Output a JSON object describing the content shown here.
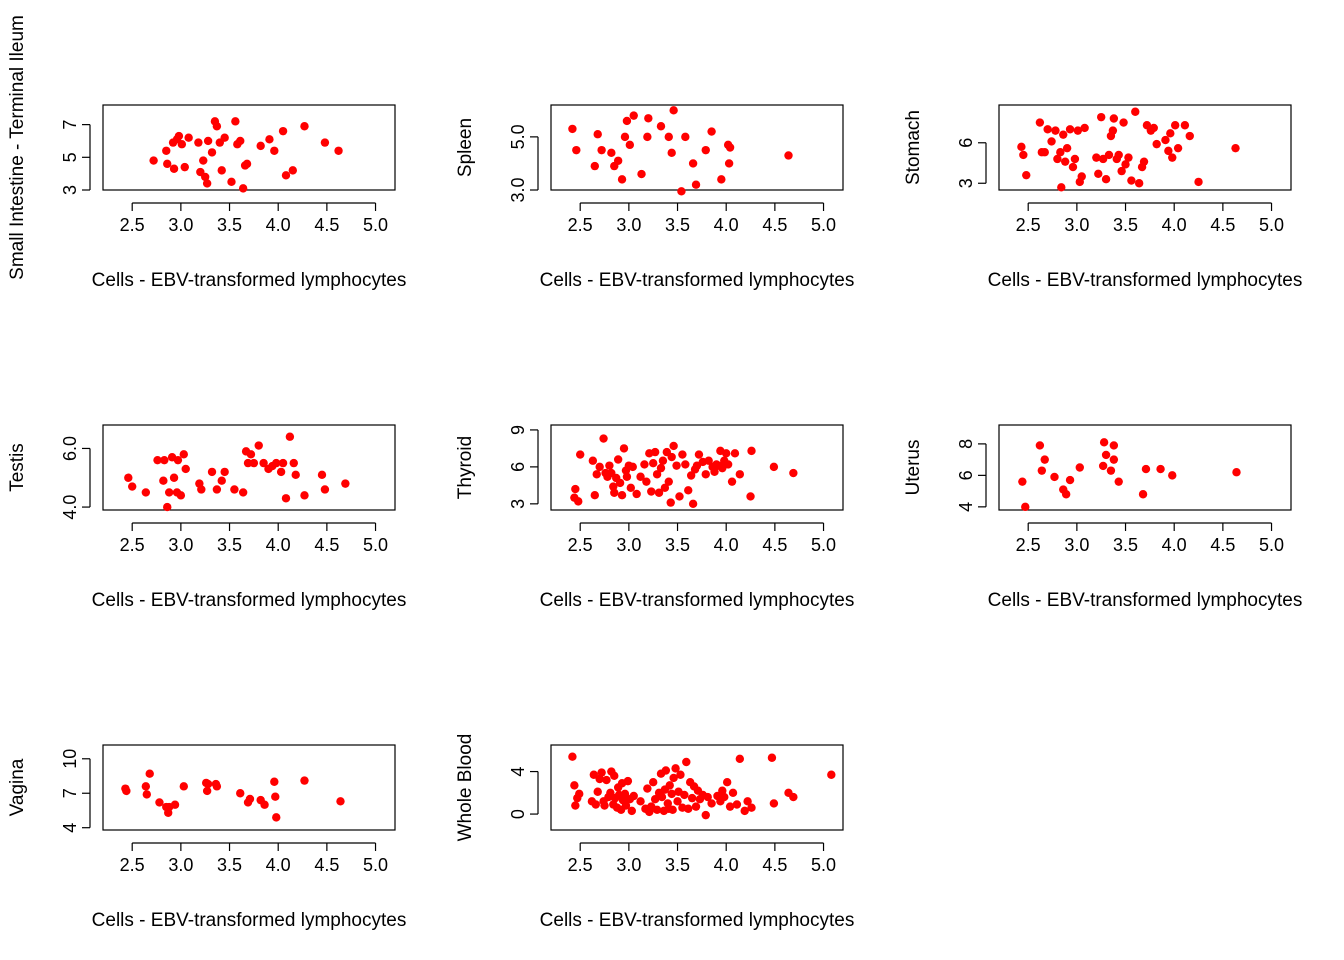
{
  "style": {
    "point_color": "#ff0000",
    "axis_color": "#000000",
    "background": "#ffffff"
  },
  "chart_data": [
    {
      "type": "scatter",
      "xlabel": "Cells - EBV-transformed lymphocytes",
      "ylabel": "Small Intestine - Terminal Ileum",
      "xlim": [
        2.2,
        5.2
      ],
      "ylim": [
        3,
        8.2
      ],
      "xticks": [
        "2.5",
        "3.0",
        "3.5",
        "4.0",
        "4.5",
        "5.0"
      ],
      "yticks": [
        "3",
        "5",
        "7"
      ],
      "x": [
        2.72,
        2.85,
        2.86,
        2.92,
        2.93,
        2.96,
        2.98,
        3.01,
        3.04,
        3.08,
        3.18,
        3.2,
        3.23,
        3.25,
        3.27,
        3.28,
        3.32,
        3.35,
        3.37,
        3.4,
        3.42,
        3.45,
        3.52,
        3.56,
        3.58,
        3.61,
        3.64,
        3.66,
        3.68,
        3.82,
        3.91,
        3.96,
        4.05,
        4.08,
        4.15,
        4.27,
        4.48,
        4.62
      ],
      "y": [
        4.8,
        5.4,
        4.6,
        5.9,
        4.3,
        6.1,
        6.3,
        5.8,
        4.4,
        6.2,
        5.9,
        4.1,
        4.8,
        3.8,
        3.4,
        6.0,
        5.3,
        7.2,
        6.9,
        5.9,
        4.2,
        6.2,
        3.5,
        7.2,
        5.8,
        6.0,
        3.1,
        4.5,
        4.6,
        5.7,
        6.1,
        5.4,
        6.6,
        3.9,
        4.2,
        6.9,
        5.9,
        5.4
      ]
    },
    {
      "type": "scatter",
      "xlabel": "Cells - EBV-transformed lymphocytes",
      "ylabel": "Spleen",
      "xlim": [
        2.2,
        5.2
      ],
      "ylim": [
        3,
        6.2
      ],
      "xticks": [
        "2.5",
        "3.0",
        "3.5",
        "4.0",
        "4.5",
        "5.0"
      ],
      "yticks": [
        "3.0",
        "5.0"
      ],
      "x": [
        2.42,
        2.46,
        2.65,
        2.68,
        2.72,
        2.82,
        2.85,
        2.89,
        2.93,
        2.96,
        2.98,
        3.01,
        3.05,
        3.13,
        3.19,
        3.2,
        3.33,
        3.41,
        3.44,
        3.46,
        3.54,
        3.58,
        3.66,
        3.69,
        3.79,
        3.85,
        3.95,
        4.02,
        4.03,
        4.04,
        4.64
      ],
      "y": [
        5.3,
        4.5,
        3.9,
        5.1,
        4.5,
        4.4,
        3.9,
        4.1,
        3.4,
        5.0,
        5.6,
        4.7,
        5.8,
        3.6,
        5.0,
        5.7,
        5.4,
        5.0,
        4.4,
        6.0,
        2.95,
        5.0,
        4.0,
        3.2,
        4.5,
        5.2,
        3.4,
        4.7,
        4.0,
        4.6,
        4.3
      ]
    },
    {
      "type": "scatter",
      "xlabel": "Cells - EBV-transformed lymphocytes",
      "ylabel": "Stomach",
      "xlim": [
        2.2,
        5.2
      ],
      "ylim": [
        2.5,
        8.8
      ],
      "xticks": [
        "2.5",
        "3.0",
        "3.5",
        "4.0",
        "4.5",
        "5.0"
      ],
      "yticks": [
        "3",
        "6"
      ],
      "x": [
        2.43,
        2.45,
        2.48,
        2.62,
        2.64,
        2.67,
        2.7,
        2.74,
        2.78,
        2.8,
        2.83,
        2.84,
        2.86,
        2.88,
        2.9,
        2.93,
        2.96,
        2.98,
        3.01,
        3.03,
        3.05,
        3.08,
        3.2,
        3.22,
        3.25,
        3.27,
        3.3,
        3.33,
        3.35,
        3.37,
        3.38,
        3.41,
        3.43,
        3.46,
        3.48,
        3.5,
        3.53,
        3.56,
        3.6,
        3.64,
        3.67,
        3.69,
        3.72,
        3.76,
        3.79,
        3.82,
        3.91,
        3.94,
        3.96,
        3.98,
        4.01,
        4.04,
        4.11,
        4.16,
        4.25,
        4.63
      ],
      "y": [
        5.7,
        5.1,
        3.6,
        7.5,
        5.3,
        5.3,
        7.0,
        6.1,
        6.9,
        4.8,
        5.3,
        2.7,
        6.6,
        4.6,
        5.6,
        7.0,
        4.2,
        4.8,
        6.9,
        3.1,
        3.5,
        7.1,
        4.9,
        3.7,
        7.9,
        4.8,
        3.3,
        5.1,
        6.5,
        6.9,
        7.8,
        4.8,
        5.1,
        3.9,
        7.5,
        4.4,
        4.9,
        3.2,
        8.3,
        3.0,
        4.2,
        4.6,
        7.3,
        6.9,
        7.1,
        5.9,
        6.2,
        5.4,
        6.7,
        4.9,
        7.3,
        5.6,
        7.3,
        6.5,
        3.1,
        5.6
      ]
    },
    {
      "type": "scatter",
      "xlabel": "Cells - EBV-transformed lymphocytes",
      "ylabel": "Testis",
      "xlim": [
        2.2,
        5.2
      ],
      "ylim": [
        3.9,
        6.8
      ],
      "xticks": [
        "2.5",
        "3.0",
        "3.5",
        "4.0",
        "4.5",
        "5.0"
      ],
      "yticks": [
        "4.0",
        "6.0"
      ],
      "x": [
        2.46,
        2.5,
        2.64,
        2.76,
        2.82,
        2.83,
        2.86,
        2.88,
        2.91,
        2.93,
        2.96,
        2.97,
        3.0,
        3.03,
        3.05,
        3.19,
        3.21,
        3.32,
        3.37,
        3.42,
        3.45,
        3.55,
        3.64,
        3.67,
        3.69,
        3.72,
        3.75,
        3.8,
        3.85,
        3.9,
        3.94,
        3.98,
        4.03,
        4.05,
        4.08,
        4.12,
        4.16,
        4.18,
        4.27,
        4.45,
        4.48,
        4.69
      ],
      "y": [
        5.0,
        4.7,
        4.5,
        5.6,
        4.9,
        5.6,
        4.0,
        4.5,
        5.7,
        5.0,
        4.5,
        5.6,
        4.4,
        5.8,
        5.3,
        4.8,
        4.6,
        5.2,
        4.6,
        4.9,
        5.2,
        4.6,
        4.5,
        5.9,
        5.5,
        5.8,
        5.5,
        6.1,
        5.5,
        5.3,
        5.4,
        5.5,
        5.2,
        5.5,
        4.3,
        6.4,
        5.5,
        5.1,
        4.4,
        5.1,
        4.6,
        4.8
      ]
    },
    {
      "type": "scatter",
      "xlabel": "Cells - EBV-transformed lymphocytes",
      "ylabel": "Thyroid",
      "xlim": [
        2.2,
        5.2
      ],
      "ylim": [
        2.5,
        9.4
      ],
      "xticks": [
        "2.5",
        "3.0",
        "3.5",
        "4.0",
        "4.5",
        "5.0"
      ],
      "yticks": [
        "3",
        "6",
        "9"
      ],
      "x": [
        2.44,
        2.45,
        2.48,
        2.5,
        2.63,
        2.65,
        2.67,
        2.7,
        2.74,
        2.76,
        2.78,
        2.8,
        2.82,
        2.84,
        2.85,
        2.87,
        2.89,
        2.91,
        2.93,
        2.95,
        2.97,
        2.98,
        3.0,
        3.02,
        3.04,
        3.08,
        3.12,
        3.16,
        3.18,
        3.21,
        3.23,
        3.25,
        3.27,
        3.29,
        3.31,
        3.33,
        3.35,
        3.37,
        3.39,
        3.41,
        3.43,
        3.44,
        3.46,
        3.49,
        3.52,
        3.55,
        3.58,
        3.61,
        3.64,
        3.66,
        3.68,
        3.7,
        3.72,
        3.76,
        3.79,
        3.82,
        3.86,
        3.88,
        3.9,
        3.92,
        3.94,
        3.96,
        3.98,
        4.0,
        4.02,
        4.06,
        4.09,
        4.14,
        4.25,
        4.26,
        4.49,
        4.69
      ],
      "y": [
        3.5,
        4.2,
        3.2,
        7.0,
        6.5,
        3.7,
        5.4,
        6.0,
        8.3,
        5.5,
        5.2,
        6.1,
        5.5,
        4.4,
        3.9,
        5.1,
        6.6,
        4.7,
        3.7,
        7.5,
        5.7,
        5.2,
        6.1,
        4.3,
        6.0,
        3.8,
        5.2,
        6.2,
        4.8,
        7.1,
        4.0,
        6.3,
        7.2,
        5.4,
        3.9,
        5.9,
        6.5,
        4.3,
        7.2,
        4.8,
        3.1,
        6.8,
        7.7,
        6.1,
        3.6,
        7.0,
        6.2,
        4.1,
        5.3,
        3.0,
        5.8,
        6.1,
        7.0,
        6.4,
        5.4,
        6.5,
        6.0,
        5.6,
        6.2,
        6.1,
        7.3,
        5.9,
        6.5,
        7.1,
        6.2,
        4.8,
        7.1,
        5.4,
        3.6,
        7.3,
        6.0,
        5.5
      ]
    },
    {
      "type": "scatter",
      "xlabel": "Cells - EBV-transformed lymphocytes",
      "ylabel": "Uterus",
      "xlim": [
        2.2,
        5.2
      ],
      "ylim": [
        3.8,
        9.2
      ],
      "xticks": [
        "2.5",
        "3.0",
        "3.5",
        "4.0",
        "4.5",
        "5.0"
      ],
      "yticks": [
        "4",
        "6",
        "8"
      ],
      "x": [
        2.44,
        2.47,
        2.62,
        2.64,
        2.67,
        2.77,
        2.86,
        2.89,
        2.93,
        3.03,
        3.27,
        3.28,
        3.3,
        3.35,
        3.38,
        3.38,
        3.43,
        3.68,
        3.71,
        3.86,
        3.98,
        4.64
      ],
      "y": [
        5.6,
        4.0,
        7.9,
        6.3,
        7.0,
        5.9,
        5.1,
        4.8,
        5.7,
        6.5,
        6.6,
        8.1,
        7.3,
        6.3,
        7.9,
        7.0,
        5.6,
        4.8,
        6.4,
        6.4,
        6.0,
        6.2
      ]
    },
    {
      "type": "scatter",
      "xlabel": "Cells - EBV-transformed lymphocytes",
      "ylabel": "Vagina",
      "xlim": [
        2.2,
        5.2
      ],
      "ylim": [
        3.8,
        11.2
      ],
      "xticks": [
        "2.5",
        "3.0",
        "3.5",
        "4.0",
        "4.5",
        "5.0"
      ],
      "yticks": [
        "4",
        "7",
        "10"
      ],
      "x": [
        2.43,
        2.44,
        2.64,
        2.65,
        2.68,
        2.78,
        2.85,
        2.87,
        2.88,
        2.94,
        3.03,
        3.26,
        3.27,
        3.28,
        3.36,
        3.37,
        3.61,
        3.69,
        3.71,
        3.82,
        3.86,
        3.96,
        3.97,
        3.98,
        4.27,
        4.64
      ],
      "y": [
        7.4,
        7.2,
        7.6,
        6.9,
        8.7,
        6.2,
        5.8,
        5.3,
        5.8,
        6.0,
        7.6,
        7.9,
        7.2,
        7.8,
        7.8,
        7.6,
        7.0,
        6.2,
        6.5,
        6.4,
        6.0,
        8.0,
        6.7,
        4.9,
        8.1,
        6.3
      ]
    },
    {
      "type": "scatter",
      "xlabel": "Cells - EBV-transformed lymphocytes",
      "ylabel": "Whole Blood",
      "xlim": [
        2.2,
        5.2
      ],
      "ylim": [
        -1.5,
        6.5
      ],
      "xticks": [
        "2.5",
        "3.0",
        "3.5",
        "4.0",
        "4.5",
        "5.0"
      ],
      "yticks": [
        "0",
        "4"
      ],
      "x": [
        2.42,
        2.44,
        2.45,
        2.47,
        2.49,
        2.62,
        2.64,
        2.66,
        2.68,
        2.7,
        2.72,
        2.74,
        2.75,
        2.77,
        2.79,
        2.81,
        2.82,
        2.84,
        2.85,
        2.86,
        2.88,
        2.89,
        2.9,
        2.92,
        2.93,
        2.94,
        2.96,
        2.97,
        2.99,
        3.01,
        3.03,
        3.05,
        3.12,
        3.17,
        3.19,
        3.21,
        3.23,
        3.25,
        3.27,
        3.29,
        3.31,
        3.33,
        3.34,
        3.36,
        3.37,
        3.38,
        3.4,
        3.41,
        3.42,
        3.44,
        3.45,
        3.46,
        3.48,
        3.5,
        3.51,
        3.53,
        3.55,
        3.57,
        3.59,
        3.61,
        3.63,
        3.65,
        3.67,
        3.69,
        3.71,
        3.73,
        3.76,
        3.79,
        3.81,
        3.85,
        3.91,
        3.94,
        3.96,
        3.98,
        4.01,
        4.04,
        4.07,
        4.11,
        4.14,
        4.19,
        4.22,
        4.26,
        4.47,
        4.49,
        4.64,
        4.69,
        5.08
      ],
      "y": [
        5.4,
        2.7,
        0.8,
        1.5,
        1.9,
        1.2,
        3.7,
        0.9,
        2.1,
        3.3,
        3.9,
        1.2,
        0.8,
        3.2,
        1.6,
        2.0,
        4.0,
        0.9,
        3.6,
        1.5,
        0.6,
        2.5,
        1.8,
        0.4,
        2.9,
        1.3,
        1.9,
        0.8,
        3.1,
        1.4,
        0.3,
        1.7,
        1.2,
        0.5,
        2.4,
        0.2,
        0.7,
        3.0,
        1.4,
        0.4,
        2.0,
        3.8,
        1.6,
        0.3,
        2.3,
        4.1,
        1.0,
        0.5,
        2.7,
        1.9,
        0.4,
        3.4,
        4.3,
        1.2,
        2.1,
        3.7,
        0.6,
        1.8,
        4.9,
        0.5,
        3.0,
        1.5,
        2.6,
        0.7,
        2.2,
        1.4,
        1.8,
        -0.1,
        1.6,
        1.0,
        1.7,
        1.2,
        2.2,
        1.6,
        3.0,
        0.7,
        2.0,
        0.9,
        5.2,
        0.3,
        1.2,
        0.6,
        5.3,
        1.0,
        2.0,
        1.6,
        3.7
      ]
    }
  ]
}
